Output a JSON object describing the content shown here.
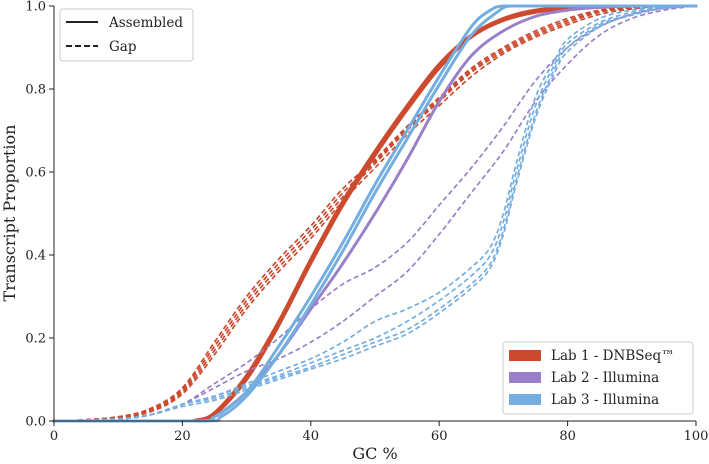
{
  "chart_data": {
    "type": "line",
    "title": "",
    "xlabel": "GC %",
    "ylabel": "Transcript Proportion",
    "xlim": [
      0,
      100
    ],
    "ylim": [
      0,
      1.0
    ],
    "xticks": [
      0,
      20,
      40,
      60,
      80,
      100
    ],
    "xtick_labels": [
      "0",
      "20",
      "40",
      "60",
      "80",
      "100"
    ],
    "yticks": [
      0,
      0.2,
      0.4,
      0.6,
      0.8,
      1.0
    ],
    "ytick_labels": [
      "0.0",
      "0.2",
      "0.4",
      "0.6",
      "0.8",
      "1.0"
    ],
    "grid": false,
    "style_legend": {
      "position": "top-left",
      "entries": [
        {
          "label": "Assembled",
          "dash": "solid"
        },
        {
          "label": "Gap",
          "dash": "dashed"
        }
      ]
    },
    "color_legend": {
      "position": "bottom-right",
      "entries": [
        {
          "label": "Lab 1 - DNBSeq™",
          "color": "#cc4a2e"
        },
        {
          "label": "Lab 2 - Illumina",
          "color": "#9a80c8"
        },
        {
          "label": "Lab 3 - Illumina",
          "color": "#74aee0"
        }
      ]
    },
    "series": [
      {
        "name": "Lab 1 Assembled A",
        "group": "Lab 1 - DNBSeq™",
        "color": "#cc4a2e",
        "dash": "solid",
        "x": [
          0,
          20,
          22,
          25,
          30,
          35,
          40,
          45,
          50,
          55,
          60,
          65,
          70,
          75,
          80,
          85,
          90,
          100
        ],
        "y": [
          0,
          0,
          0.002,
          0.02,
          0.11,
          0.24,
          0.39,
          0.53,
          0.65,
          0.76,
          0.86,
          0.93,
          0.97,
          0.99,
          0.995,
          0.998,
          1.0,
          1.0
        ]
      },
      {
        "name": "Lab 1 Assembled B",
        "group": "Lab 1 - DNBSeq™",
        "color": "#cc4a2e",
        "dash": "solid",
        "x": [
          0,
          20,
          22,
          25,
          30,
          35,
          40,
          45,
          50,
          55,
          60,
          65,
          70,
          75,
          80,
          85,
          90,
          100
        ],
        "y": [
          0,
          0,
          0.001,
          0.015,
          0.1,
          0.23,
          0.38,
          0.52,
          0.64,
          0.75,
          0.85,
          0.925,
          0.965,
          0.985,
          0.993,
          0.997,
          1.0,
          1.0
        ]
      },
      {
        "name": "Lab 1 Gap A",
        "group": "Lab 1 - DNBSeq™",
        "color": "#cc4a2e",
        "dash": "dashed",
        "x": [
          0,
          5,
          10,
          15,
          20,
          25,
          30,
          35,
          40,
          45,
          50,
          55,
          60,
          65,
          70,
          75,
          80,
          85,
          90,
          95,
          100
        ],
        "y": [
          0,
          0.003,
          0.01,
          0.025,
          0.07,
          0.17,
          0.28,
          0.37,
          0.45,
          0.54,
          0.62,
          0.7,
          0.77,
          0.84,
          0.89,
          0.93,
          0.96,
          0.985,
          0.995,
          1.0,
          1.0
        ]
      },
      {
        "name": "Lab 1 Gap B",
        "group": "Lab 1 - DNBSeq™",
        "color": "#cc4a2e",
        "dash": "dashed",
        "x": [
          0,
          5,
          10,
          15,
          20,
          25,
          30,
          35,
          40,
          45,
          50,
          55,
          60,
          65,
          70,
          75,
          80,
          85,
          90,
          95,
          100
        ],
        "y": [
          0,
          0.003,
          0.01,
          0.03,
          0.08,
          0.19,
          0.3,
          0.39,
          0.47,
          0.56,
          0.63,
          0.71,
          0.78,
          0.85,
          0.9,
          0.94,
          0.97,
          0.99,
          0.997,
          1.0,
          1.0
        ]
      },
      {
        "name": "Lab 1 Gap C",
        "group": "Lab 1 - DNBSeq™",
        "color": "#cc4a2e",
        "dash": "dashed",
        "x": [
          0,
          5,
          10,
          15,
          20,
          25,
          30,
          35,
          40,
          45,
          50,
          55,
          60,
          65,
          70,
          75,
          80,
          85,
          90,
          95,
          100
        ],
        "y": [
          0,
          0.003,
          0.01,
          0.028,
          0.075,
          0.18,
          0.29,
          0.38,
          0.46,
          0.55,
          0.625,
          0.705,
          0.775,
          0.845,
          0.895,
          0.935,
          0.965,
          0.987,
          0.996,
          1.0,
          1.0
        ]
      },
      {
        "name": "Lab 1 Gap D",
        "group": "Lab 1 - DNBSeq™",
        "color": "#cc4a2e",
        "dash": "dashed",
        "x": [
          0,
          5,
          10,
          15,
          20,
          25,
          30,
          35,
          40,
          45,
          50,
          55,
          60,
          65,
          70,
          75,
          80,
          85,
          90,
          95,
          100
        ],
        "y": [
          0,
          0.002,
          0.008,
          0.022,
          0.065,
          0.16,
          0.27,
          0.36,
          0.44,
          0.53,
          0.61,
          0.69,
          0.76,
          0.83,
          0.885,
          0.925,
          0.955,
          0.98,
          0.993,
          1.0,
          1.0
        ]
      },
      {
        "name": "Lab 2 Assembled",
        "group": "Lab 2 - Illumina",
        "color": "#9a80c8",
        "dash": "solid",
        "x": [
          0,
          22,
          25,
          30,
          35,
          40,
          45,
          50,
          55,
          60,
          65,
          70,
          75,
          80,
          85,
          90,
          100
        ],
        "y": [
          0,
          0,
          0.01,
          0.07,
          0.16,
          0.27,
          0.38,
          0.5,
          0.63,
          0.77,
          0.88,
          0.94,
          0.975,
          0.99,
          0.997,
          1.0,
          1.0
        ]
      },
      {
        "name": "Lab 2 Gap A",
        "group": "Lab 2 - Illumina",
        "color": "#9a80c8",
        "dash": "dashed",
        "x": [
          0,
          10,
          15,
          20,
          25,
          30,
          35,
          40,
          45,
          50,
          55,
          60,
          65,
          70,
          75,
          80,
          85,
          90,
          95,
          100
        ],
        "y": [
          0,
          0.005,
          0.015,
          0.04,
          0.09,
          0.14,
          0.2,
          0.27,
          0.33,
          0.37,
          0.43,
          0.52,
          0.61,
          0.71,
          0.82,
          0.9,
          0.95,
          0.98,
          0.995,
          1.0
        ]
      },
      {
        "name": "Lab 2 Gap B",
        "group": "Lab 2 - Illumina",
        "color": "#9a80c8",
        "dash": "dashed",
        "x": [
          0,
          10,
          15,
          20,
          25,
          30,
          35,
          40,
          45,
          50,
          55,
          60,
          65,
          70,
          75,
          80,
          85,
          90,
          95,
          100
        ],
        "y": [
          0,
          0.005,
          0.015,
          0.04,
          0.08,
          0.12,
          0.15,
          0.19,
          0.24,
          0.3,
          0.36,
          0.45,
          0.55,
          0.65,
          0.77,
          0.86,
          0.93,
          0.97,
          0.99,
          1.0
        ]
      },
      {
        "name": "Lab 3 Assembled A",
        "group": "Lab 3 - Illumina",
        "color": "#74aee0",
        "dash": "solid",
        "x": [
          0,
          22,
          25,
          30,
          35,
          40,
          45,
          50,
          55,
          60,
          65,
          68,
          70,
          75,
          100
        ],
        "y": [
          0,
          0,
          0.01,
          0.07,
          0.18,
          0.3,
          0.43,
          0.57,
          0.7,
          0.83,
          0.95,
          0.99,
          1.0,
          1.0,
          1.0
        ]
      },
      {
        "name": "Lab 3 Assembled B",
        "group": "Lab 3 - Illumina",
        "color": "#74aee0",
        "dash": "solid",
        "x": [
          0,
          23,
          26,
          30,
          35,
          40,
          45,
          50,
          55,
          60,
          65,
          69,
          71,
          75,
          100
        ],
        "y": [
          0,
          0,
          0.01,
          0.06,
          0.16,
          0.28,
          0.41,
          0.55,
          0.68,
          0.81,
          0.93,
          0.985,
          1.0,
          1.0,
          1.0
        ]
      },
      {
        "name": "Lab 3 Gap A",
        "group": "Lab 3 - Illumina",
        "color": "#74aee0",
        "dash": "dashed",
        "x": [
          0,
          10,
          15,
          20,
          25,
          30,
          35,
          40,
          45,
          50,
          55,
          60,
          65,
          68,
          70,
          72,
          75,
          78,
          80,
          85,
          90,
          95,
          100
        ],
        "y": [
          0,
          0.005,
          0.015,
          0.04,
          0.06,
          0.09,
          0.12,
          0.15,
          0.19,
          0.24,
          0.27,
          0.31,
          0.37,
          0.42,
          0.5,
          0.62,
          0.78,
          0.87,
          0.92,
          0.97,
          0.99,
          0.998,
          1.0
        ]
      },
      {
        "name": "Lab 3 Gap B",
        "group": "Lab 3 - Illumina",
        "color": "#74aee0",
        "dash": "dashed",
        "x": [
          0,
          10,
          15,
          20,
          25,
          30,
          35,
          40,
          45,
          50,
          55,
          60,
          65,
          68,
          70,
          72,
          75,
          78,
          80,
          85,
          90,
          95,
          100
        ],
        "y": [
          0,
          0.005,
          0.015,
          0.04,
          0.06,
          0.085,
          0.11,
          0.14,
          0.17,
          0.2,
          0.24,
          0.29,
          0.35,
          0.4,
          0.48,
          0.6,
          0.76,
          0.86,
          0.91,
          0.96,
          0.985,
          0.997,
          1.0
        ]
      },
      {
        "name": "Lab 3 Gap C",
        "group": "Lab 3 - Illumina",
        "color": "#74aee0",
        "dash": "dashed",
        "x": [
          0,
          10,
          15,
          20,
          25,
          30,
          35,
          40,
          45,
          50,
          55,
          60,
          65,
          68,
          70,
          72,
          75,
          78,
          80,
          85,
          90,
          95,
          100
        ],
        "y": [
          0,
          0.005,
          0.015,
          0.04,
          0.055,
          0.08,
          0.105,
          0.13,
          0.16,
          0.19,
          0.22,
          0.27,
          0.33,
          0.38,
          0.46,
          0.58,
          0.74,
          0.85,
          0.9,
          0.955,
          0.98,
          0.995,
          1.0
        ]
      },
      {
        "name": "Lab 3 Gap D",
        "group": "Lab 3 - Illumina",
        "color": "#74aee0",
        "dash": "dashed",
        "x": [
          0,
          10,
          15,
          20,
          25,
          30,
          35,
          40,
          45,
          50,
          55,
          60,
          65,
          68,
          70,
          72,
          75,
          78,
          80,
          85,
          90,
          95,
          100
        ],
        "y": [
          0,
          0.005,
          0.015,
          0.035,
          0.05,
          0.075,
          0.1,
          0.125,
          0.15,
          0.18,
          0.21,
          0.26,
          0.32,
          0.37,
          0.45,
          0.57,
          0.73,
          0.84,
          0.89,
          0.95,
          0.978,
          0.994,
          1.0
        ]
      }
    ]
  }
}
